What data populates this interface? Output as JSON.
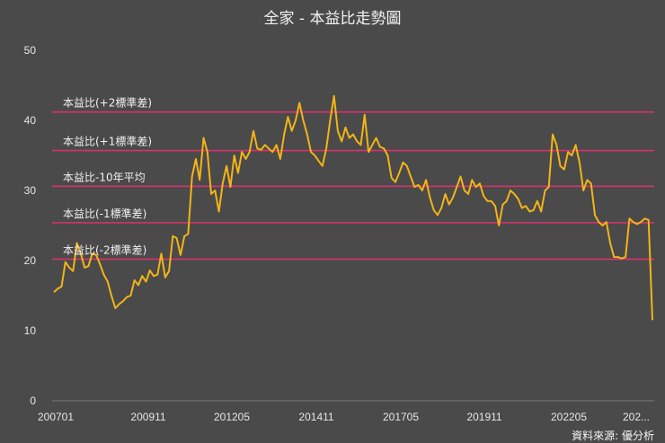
{
  "chart_data": {
    "type": "line",
    "title": "全家 - 本益比走勢圖",
    "source": "資料來源: 優分析",
    "xlabel": "",
    "ylabel": "",
    "ylim": [
      0,
      50
    ],
    "y_ticks": [
      0,
      10,
      20,
      30,
      40,
      50
    ],
    "grid": false,
    "x_tick_labels": [
      "200701",
      "200911",
      "201205",
      "201411",
      "201705",
      "201911",
      "202205",
      "202..."
    ],
    "reference_lines": [
      {
        "label": "本益比(+2標準差)",
        "value": 41.2,
        "color": "#d6336c"
      },
      {
        "label": "本益比(+1標準差)",
        "value": 35.7,
        "color": "#d6336c"
      },
      {
        "label": "本益比-10年平均",
        "value": 30.6,
        "color": "#d6336c"
      },
      {
        "label": "本益比(-1標準差)",
        "value": 25.4,
        "color": "#d6336c"
      },
      {
        "label": "本益比(-2標準差)",
        "value": 20.2,
        "color": "#d6336c"
      }
    ],
    "series": [
      {
        "color": "#f2b418",
        "values": [
          15.5,
          16.0,
          16.3,
          19.8,
          19.0,
          18.5,
          22.5,
          21.0,
          19.0,
          19.2,
          21.0,
          20.8,
          19.5,
          18.0,
          17.0,
          15.0,
          13.2,
          13.8,
          14.2,
          14.8,
          15.0,
          17.2,
          16.5,
          17.8,
          17.0,
          18.6,
          17.8,
          18.0,
          21.0,
          17.6,
          18.5,
          23.5,
          23.2,
          20.8,
          23.5,
          23.8,
          32.0,
          34.5,
          31.5,
          37.5,
          35.5,
          29.5,
          30.0,
          27.0,
          31.0,
          33.5,
          30.5,
          35.0,
          32.5,
          35.5,
          34.5,
          35.5,
          38.5,
          36.0,
          35.8,
          36.5,
          36.0,
          35.5,
          36.5,
          34.5,
          38.0,
          40.5,
          38.5,
          40.0,
          42.5,
          40.0,
          38.0,
          35.5,
          35.0,
          34.2,
          33.5,
          36.0,
          40.0,
          43.5,
          38.5,
          37.0,
          39.0,
          37.5,
          38.0,
          37.0,
          36.5,
          40.8,
          35.5,
          36.5,
          37.5,
          36.2,
          36.0,
          35.0,
          31.8,
          31.2,
          32.5,
          34.0,
          33.5,
          32.0,
          30.5,
          30.8,
          30.0,
          31.5,
          29.0,
          27.2,
          26.5,
          27.5,
          29.5,
          28.0,
          29.0,
          30.5,
          32.0,
          30.0,
          29.5,
          31.5,
          30.5,
          31.0,
          29.2,
          28.5,
          28.5,
          27.8,
          25.0,
          28.0,
          28.5,
          30.0,
          29.5,
          28.8,
          27.5,
          27.8,
          27.0,
          27.2,
          28.5,
          27.0,
          30.0,
          30.5,
          38.0,
          36.5,
          33.5,
          33.0,
          35.5,
          35.0,
          36.5,
          34.0,
          30.0,
          31.5,
          31.0,
          26.5,
          25.5,
          25.0,
          25.5,
          22.5,
          20.5,
          20.5,
          20.3,
          20.5,
          26.0,
          25.5,
          25.2,
          25.5,
          26.0,
          25.8,
          11.5
        ]
      }
    ]
  }
}
